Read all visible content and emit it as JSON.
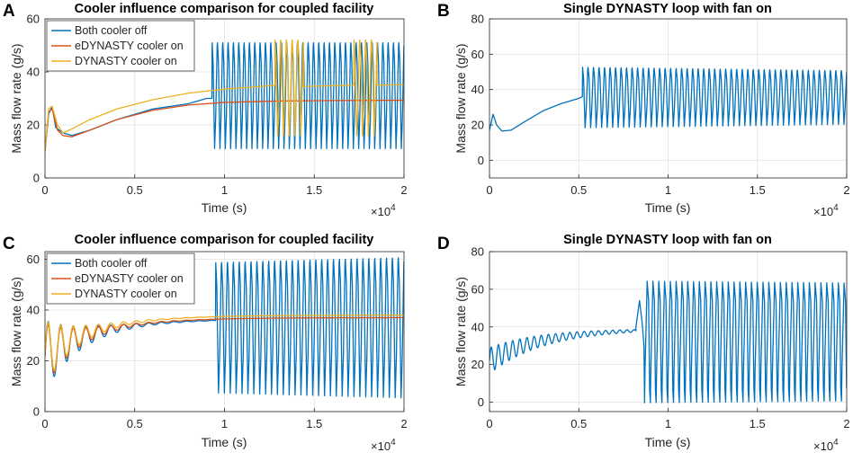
{
  "figure": {
    "panels": [
      {
        "letter": "A"
      },
      {
        "letter": "B"
      },
      {
        "letter": "C"
      },
      {
        "letter": "D"
      }
    ]
  },
  "chart_data": [
    {
      "panel": "A",
      "type": "line",
      "title": "Cooler influence comparison for coupled facility",
      "xlabel": "Time (s)",
      "ylabel": "Mass flow rate (g/s)",
      "x_multiplier": "×10",
      "x_multiplier_exp": "4",
      "xlim": [
        0,
        2
      ],
      "ylim": [
        0,
        60
      ],
      "xticks": [
        "0",
        "0.5",
        "1",
        "1.5",
        "2"
      ],
      "yticks": [
        "0",
        "20",
        "40",
        "60"
      ],
      "grid": true,
      "legend": "top-left",
      "series": [
        {
          "name": "Both cooler off",
          "color": "#0072BD",
          "phases": [
            {
              "kind": "points",
              "x": [
                0,
                0.02,
                0.04,
                0.06,
                0.1,
                0.15,
                0.25,
                0.4,
                0.6,
                0.8,
                0.9,
                0.93
              ],
              "y": [
                10,
                24,
                27,
                19,
                17,
                16,
                18,
                22,
                26,
                28,
                30,
                30
              ]
            },
            {
              "kind": "osc",
              "t0": 0.93,
              "t1": 2.0,
              "n": 36,
              "mean": 31,
              "amp": 21,
              "amp1": 21,
              "spike": 0.04,
              "first": "up"
            }
          ]
        },
        {
          "name": "eDYNASTY cooler on",
          "color": "#D95319",
          "phases": [
            {
              "kind": "points",
              "x": [
                0,
                0.02,
                0.04,
                0.07,
                0.1,
                0.15,
                0.25,
                0.4,
                0.6,
                0.8,
                1.0,
                1.3,
                1.6,
                2.0
              ],
              "y": [
                10,
                25,
                26,
                18,
                16,
                15.5,
                18,
                22,
                25.5,
                27.5,
                28.5,
                29,
                29.2,
                29.3
              ]
            }
          ]
        },
        {
          "name": "DYNASTY cooler on",
          "color": "#EDB120",
          "phases": [
            {
              "kind": "points",
              "x": [
                0,
                0.02,
                0.04,
                0.07,
                0.1,
                0.15,
                0.25,
                0.4,
                0.6,
                0.8,
                1.0,
                1.2,
                1.28
              ],
              "y": [
                10,
                26,
                27,
                20,
                17,
                18.5,
                22,
                26,
                29.5,
                32,
                33.5,
                34.5,
                35
              ]
            },
            {
              "kind": "osc",
              "t0": 1.28,
              "t1": 1.44,
              "n": 5,
              "mean": 34,
              "amp": 19,
              "amp1": 19,
              "spike": 0.0,
              "first": "up"
            },
            {
              "kind": "points",
              "x": [
                1.44,
                1.6,
                1.72
              ],
              "y": [
                34.5,
                34.8,
                35
              ]
            },
            {
              "kind": "osc",
              "t0": 1.72,
              "t1": 1.85,
              "n": 4,
              "mean": 34,
              "amp": 19,
              "amp1": 19,
              "spike": 0.0,
              "first": "up"
            },
            {
              "kind": "points",
              "x": [
                1.85,
                2.0
              ],
              "y": [
                35,
                35.2
              ]
            }
          ]
        }
      ]
    },
    {
      "panel": "B",
      "type": "line",
      "title": "Single DYNASTY loop with fan on",
      "xlabel": "Time (s)",
      "ylabel": "Mass flow rate (g/s)",
      "x_multiplier": "×10",
      "x_multiplier_exp": "4",
      "xlim": [
        0,
        2
      ],
      "ylim": [
        -10,
        80
      ],
      "xticks": [
        "0",
        "0.5",
        "1",
        "1.5",
        "2"
      ],
      "yticks": [
        "0",
        "20",
        "40",
        "60",
        "80"
      ],
      "grid": true,
      "series": [
        {
          "name": "Mass flow rate",
          "color": "#0072BD",
          "phases": [
            {
              "kind": "points",
              "x": [
                0,
                0.02,
                0.04,
                0.07,
                0.12,
                0.2,
                0.3,
                0.4,
                0.5,
                0.52
              ],
              "y": [
                17,
                26,
                20,
                16.5,
                17,
                22,
                28,
                32,
                35,
                36
              ]
            },
            {
              "kind": "osc",
              "t0": 0.52,
              "t1": 2.0,
              "n": 48,
              "mean": 35.5,
              "amp": 18,
              "amp1": 16,
              "spike": 0.0,
              "first": "up"
            }
          ]
        }
      ]
    },
    {
      "panel": "C",
      "type": "line",
      "title": "Cooler influence comparison for coupled facility",
      "xlabel": "Time (s)",
      "ylabel": "Mass flow rate (g/s)",
      "x_multiplier": "×10",
      "x_multiplier_exp": "4",
      "xlim": [
        0,
        2
      ],
      "ylim": [
        0,
        63
      ],
      "xticks": [
        "0",
        "0.5",
        "1",
        "1.5",
        "2"
      ],
      "yticks": [
        "0",
        "20",
        "40",
        "60"
      ],
      "grid": true,
      "legend": "top-left",
      "series": [
        {
          "name": "Both cooler off",
          "color": "#0072BD",
          "phases": [
            {
              "kind": "decay",
              "t0": 0,
              "t1": 0.95,
              "base0": 22,
              "base1": 36.5,
              "amp0": 14,
              "tau": 0.18,
              "period": 0.07
            },
            {
              "kind": "osc",
              "t0": 0.95,
              "t1": 2.0,
              "n": 32,
              "mean": 33,
              "amp": 27,
              "amp1": 29,
              "spike": 0.0,
              "first": "up"
            }
          ]
        },
        {
          "name": "eDYNASTY cooler on",
          "color": "#D95319",
          "phases": [
            {
              "kind": "decay",
              "t0": 0,
              "t1": 2.0,
              "base0": 22,
              "base1": 37,
              "amp0": 13,
              "tau": 0.16,
              "period": 0.07
            }
          ]
        },
        {
          "name": "DYNASTY cooler on",
          "color": "#EDB120",
          "phases": [
            {
              "kind": "decay",
              "t0": 0,
              "t1": 2.0,
              "base0": 23,
              "base1": 38,
              "amp0": 13,
              "tau": 0.16,
              "period": 0.07
            }
          ]
        }
      ]
    },
    {
      "panel": "D",
      "type": "line",
      "title": "Single DYNASTY loop with fan on",
      "xlabel": "Time (s)",
      "ylabel": "Mass flow rate (g/s)",
      "x_multiplier": "×10",
      "x_multiplier_exp": "4",
      "xlim": [
        0,
        2
      ],
      "ylim": [
        -5,
        80
      ],
      "xticks": [
        "0",
        "0.5",
        "1",
        "1.5",
        "2"
      ],
      "yticks": [
        "0",
        "20",
        "40",
        "60",
        "80"
      ],
      "grid": true,
      "series": [
        {
          "name": "Mass flow rate",
          "color": "#0072BD",
          "phases": [
            {
              "kind": "decay",
              "t0": 0,
              "t1": 0.82,
              "base0": 22,
              "base1": 39,
              "amp0": 7,
              "tau": 0.35,
              "period": 0.04
            },
            {
              "kind": "points",
              "x": [
                0.82,
                0.84,
                0.855,
                0.865
              ],
              "y": [
                40,
                54,
                42,
                30
              ]
            },
            {
              "kind": "osc",
              "t0": 0.865,
              "t1": 2.0,
              "n": 35,
              "mean": 32,
              "amp": 34,
              "amp1": 33,
              "spike": 0.0,
              "first": "down"
            }
          ]
        }
      ]
    }
  ]
}
